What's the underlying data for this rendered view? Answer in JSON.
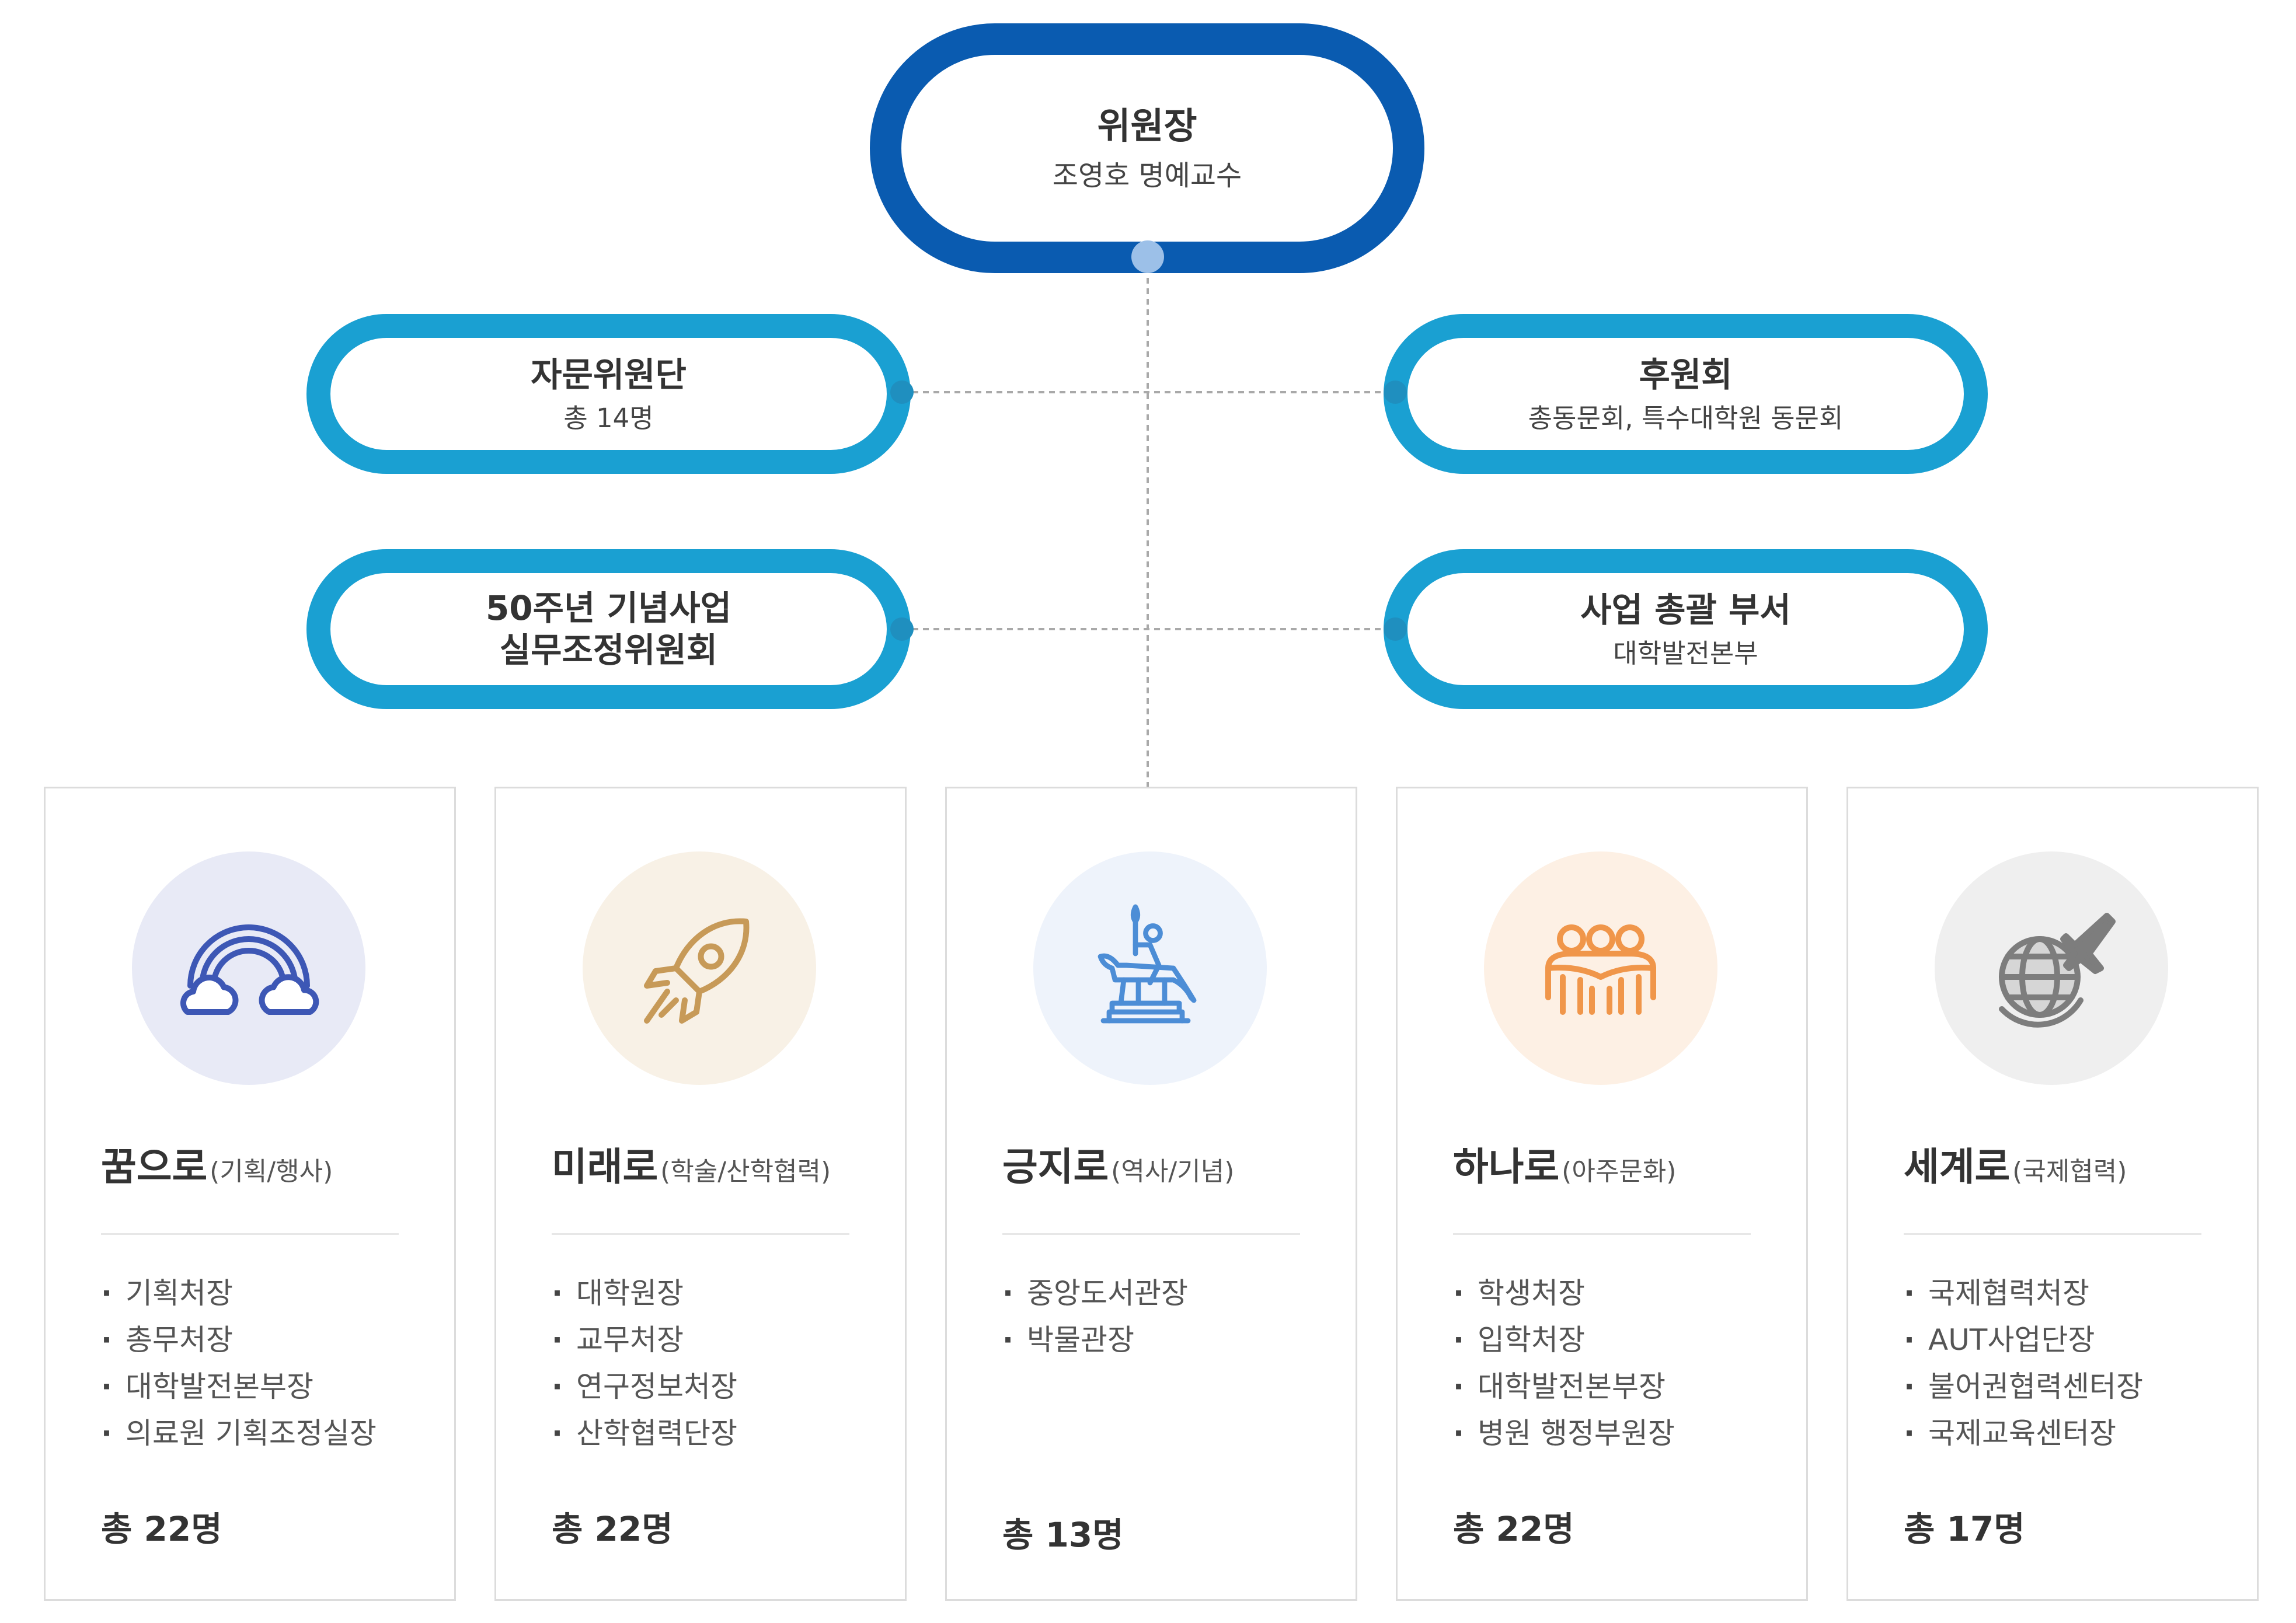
{
  "chairman": {
    "title": "위원장",
    "subtitle": "조영호 명예교수"
  },
  "advisory_board": {
    "title": "자문위원단",
    "subtitle": "총 14명"
  },
  "supporters": {
    "title": "후원회",
    "subtitle": "총동문회, 특수대학원 동문회"
  },
  "working_committee": {
    "title_line1": "50주년 기념사업",
    "title_line2": "실무조정위원회"
  },
  "general_department": {
    "title": "사업 총괄 부서",
    "subtitle": "대학발전본부"
  },
  "colors": {
    "chairman_ring": "#0a5bb0",
    "side_ring": "#1aa0d2",
    "connector": "#a9a9a9",
    "card_border": "#dcdcdc"
  },
  "divisions": [
    {
      "name": "꿈으로",
      "paren": "(기획/행사)",
      "icon": "rainbow-icon",
      "icon_bg": "#e8eaf6",
      "icon_color": "#3d57b5",
      "members": [
        "기획처장",
        "총무처장",
        "대학발전본부장",
        "의료원 기획조정실장"
      ],
      "total": "총 22명"
    },
    {
      "name": "미래로",
      "paren": "(학술/산학협력)",
      "icon": "rocket-icon",
      "icon_bg": "#f8f1e6",
      "icon_color": "#c79a58",
      "members": [
        "대학원장",
        "교무처장",
        "연구정보처장",
        "산학협력단장"
      ],
      "total": "총 22명"
    },
    {
      "name": "긍지로",
      "paren": "(역사/기념)",
      "icon": "statue-icon",
      "icon_bg": "#eef3fb",
      "icon_color": "#4c8dd6",
      "members": [
        "중앙도서관장",
        "박물관장"
      ],
      "total": "총 13명"
    },
    {
      "name": "하나로",
      "paren": "(아주문화)",
      "icon": "group-icon",
      "icon_bg": "#fdf0e4",
      "icon_color": "#f0964a",
      "members": [
        "학생처장",
        "입학처장",
        "대학발전본부장",
        "병원 행정부원장"
      ],
      "total": "총 22명"
    },
    {
      "name": "세계로",
      "paren": "(국제협력)",
      "icon": "globe-plane-icon",
      "icon_bg": "#efefef",
      "icon_color": "#7d7d7d",
      "members": [
        "국제협력처장",
        "AUT사업단장",
        "불어권협력센터장",
        "국제교육센터장"
      ],
      "total": "총 17명"
    }
  ]
}
